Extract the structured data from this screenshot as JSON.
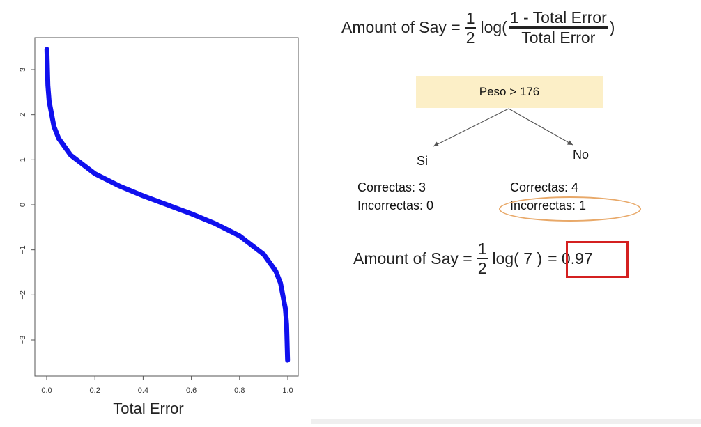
{
  "chart_data": {
    "type": "line",
    "function": "0.5*log((1-x)/x)",
    "xlabel": "Total Error",
    "ylabel": "",
    "xlim": [
      0.0,
      1.0
    ],
    "ylim": [
      -3.6,
      3.6
    ],
    "x_ticks": [
      "0.0",
      "0.2",
      "0.4",
      "0.6",
      "0.8",
      "1.0"
    ],
    "y_ticks": [
      "3",
      "2",
      "1",
      "0",
      "−1",
      "−2",
      "−3"
    ],
    "series": [
      {
        "color": "#1010ee",
        "x": [
          0.001,
          0.005,
          0.01,
          0.03,
          0.05,
          0.1,
          0.2,
          0.3,
          0.4,
          0.5,
          0.6,
          0.7,
          0.8,
          0.9,
          0.95,
          0.97,
          0.99,
          0.995,
          0.999
        ],
        "y": [
          3.45,
          2.65,
          2.3,
          1.74,
          1.47,
          1.1,
          0.69,
          0.42,
          0.2,
          0.0,
          -0.2,
          -0.42,
          -0.69,
          -1.1,
          -1.47,
          -1.74,
          -2.3,
          -2.65,
          -3.45
        ]
      }
    ],
    "grid": false,
    "legend": "none"
  },
  "formula_top": {
    "lhs": "Amount of Say =",
    "half_num": "1",
    "half_den": "2",
    "log": "log(",
    "ratio_num_prefix": "1",
    "ratio_num": " - Total Error",
    "ratio_den": "Total Error",
    "close": ")"
  },
  "tree": {
    "root_label": "Peso > 176",
    "left_label": "Si",
    "right_label": "No",
    "left_correct": "Correctas: 3",
    "left_incorrect": "Incorrectas: 0",
    "right_correct": "Correctas: 4",
    "right_incorrect": "Incorrectas: 1",
    "arrow_color": "#555555"
  },
  "formula_bottom": {
    "lhs": "Amount of Say =",
    "half_num": "1",
    "half_den": "2",
    "log": "log( 7 )",
    "result": "= 0.97",
    "highlight_color": "#d42020"
  }
}
